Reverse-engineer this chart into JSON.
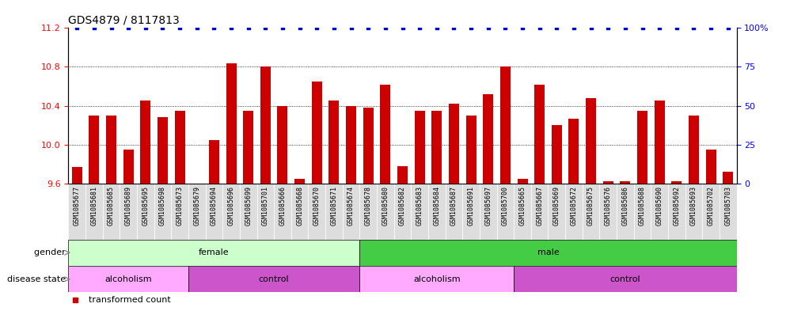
{
  "title": "GDS4879 / 8117813",
  "samples": [
    "GSM1085677",
    "GSM1085681",
    "GSM1085685",
    "GSM1085689",
    "GSM1085695",
    "GSM1085698",
    "GSM1085673",
    "GSM1085679",
    "GSM1085694",
    "GSM1085696",
    "GSM1085699",
    "GSM1085701",
    "GSM1085666",
    "GSM1085668",
    "GSM1085670",
    "GSM1085671",
    "GSM1085674",
    "GSM1085678",
    "GSM1085680",
    "GSM1085682",
    "GSM1085683",
    "GSM1085684",
    "GSM1085687",
    "GSM1085691",
    "GSM1085697",
    "GSM1085700",
    "GSM1085665",
    "GSM1085667",
    "GSM1085669",
    "GSM1085672",
    "GSM1085675",
    "GSM1085676",
    "GSM1085686",
    "GSM1085688",
    "GSM1085690",
    "GSM1085692",
    "GSM1085693",
    "GSM1085702",
    "GSM1085703"
  ],
  "values": [
    9.77,
    10.3,
    10.3,
    9.95,
    10.45,
    10.28,
    10.35,
    9.6,
    10.05,
    10.84,
    10.35,
    10.8,
    10.4,
    9.65,
    10.65,
    10.45,
    10.4,
    10.38,
    10.62,
    9.78,
    10.35,
    10.35,
    10.42,
    10.3,
    10.52,
    10.8,
    9.65,
    10.62,
    10.2,
    10.27,
    10.48,
    9.62,
    9.62,
    10.35,
    10.45,
    9.62,
    10.3,
    9.95,
    9.72
  ],
  "gender": [
    "female",
    "female",
    "female",
    "female",
    "female",
    "female",
    "female",
    "female",
    "female",
    "female",
    "female",
    "female",
    "female",
    "female",
    "female",
    "female",
    "female",
    "male",
    "male",
    "male",
    "male",
    "male",
    "male",
    "male",
    "male",
    "male",
    "male",
    "male",
    "male",
    "male",
    "male",
    "male",
    "male",
    "male",
    "male",
    "male",
    "male",
    "male",
    "male"
  ],
  "disease": [
    "alcoholism",
    "alcoholism",
    "alcoholism",
    "alcoholism",
    "alcoholism",
    "alcoholism",
    "alcoholism",
    "control",
    "control",
    "control",
    "control",
    "control",
    "control",
    "control",
    "control",
    "control",
    "control",
    "alcoholism",
    "alcoholism",
    "alcoholism",
    "alcoholism",
    "alcoholism",
    "alcoholism",
    "alcoholism",
    "alcoholism",
    "alcoholism",
    "control",
    "control",
    "control",
    "control",
    "control",
    "control",
    "control",
    "control",
    "control",
    "control",
    "control",
    "control",
    "control"
  ],
  "ylim_left": [
    9.6,
    11.2
  ],
  "ylim_right": [
    0,
    100
  ],
  "yticks_left": [
    9.6,
    10.0,
    10.4,
    10.8,
    11.2
  ],
  "yticks_right": [
    0,
    25,
    50,
    75,
    100
  ],
  "bar_color": "#cc0000",
  "dot_color": "#0000cc",
  "female_light_color": "#ccffcc",
  "male_color": "#44cc44",
  "alcoholism_light_color": "#ffaaff",
  "control_color": "#cc55cc",
  "bar_bottom": 9.6,
  "title_fontsize": 10,
  "tick_label_fontsize": 6,
  "row_label_fontsize": 8,
  "legend_fontsize": 8
}
